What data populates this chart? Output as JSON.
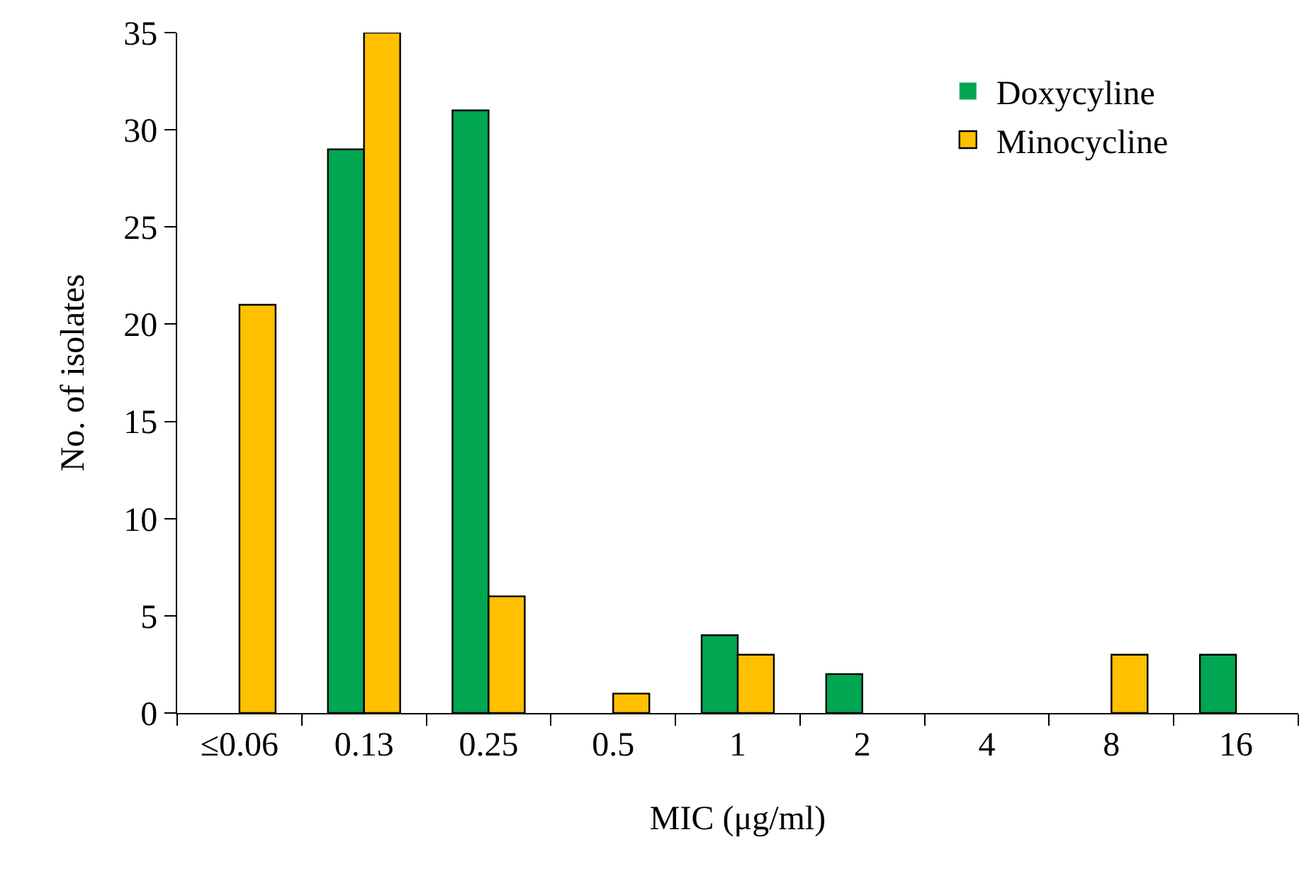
{
  "chart_data": {
    "type": "bar",
    "xlabel": "MIC (μg/ml)",
    "ylabel": "No. of isolates",
    "categories": [
      "≤0.06",
      "0.13",
      "0.25",
      "0.5",
      "1",
      "2",
      "4",
      "8",
      "16"
    ],
    "series": [
      {
        "name": "Doxycyline",
        "color": "#00a651",
        "values": [
          0,
          29,
          31,
          0,
          4,
          2,
          0,
          0,
          3
        ]
      },
      {
        "name": "Minocycline",
        "color": "#ffc000",
        "values": [
          21,
          35,
          6,
          1,
          3,
          0,
          0,
          3,
          0
        ]
      }
    ],
    "ylim": [
      0,
      35
    ],
    "yticks": [
      0,
      5,
      10,
      15,
      20,
      25,
      30,
      35
    ],
    "grid": false,
    "legend": "top right"
  }
}
